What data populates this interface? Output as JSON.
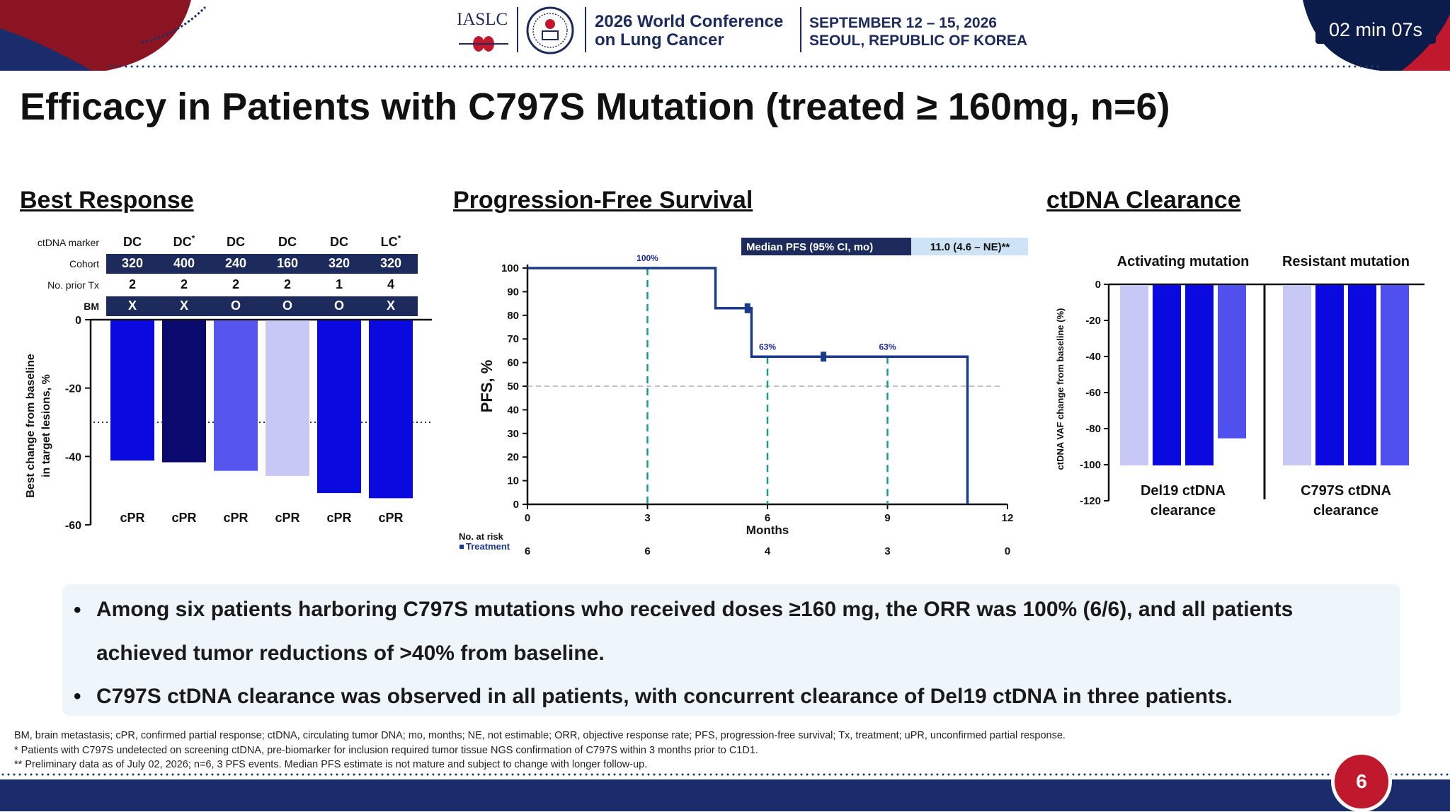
{
  "header": {
    "org": "IASLC",
    "conference_line1": "2026 World Conference",
    "conference_line2": "on Lung Cancer",
    "date_line1": "SEPTEMBER 12 – 15, 2026",
    "date_line2": "SEOUL, REPUBLIC OF KOREA",
    "timer": "02 min 07s",
    "colors": {
      "navy": "#1c2a5c",
      "red": "#c0192e"
    }
  },
  "title": "Efficacy in Patients with C797S Mutation (treated ≥ 160mg, n=6)",
  "sections": {
    "best_response": "Best Response",
    "pfs": "Progression-Free Survival",
    "ctdna": "ctDNA Clearance"
  },
  "chart_data": [
    {
      "type": "bar",
      "id": "best-response",
      "ylabel": "Best change from baseline in target lesions, %",
      "ylim": [
        -60,
        0
      ],
      "yticks": [
        0,
        -20,
        -40,
        -60
      ],
      "threshold": -30,
      "table_rows": [
        {
          "label": "ctDNA marker",
          "cells": [
            "DC",
            "DC",
            "DC",
            "DC",
            "DC",
            "LC"
          ],
          "sup": [
            "",
            "*",
            "",
            "",
            "",
            "*"
          ]
        },
        {
          "label": "Cohort",
          "cells": [
            "320",
            "400",
            "240",
            "160",
            "320",
            "320"
          ]
        },
        {
          "label": "No. prior Tx",
          "cells": [
            "2",
            "2",
            "2",
            "2",
            "1",
            "4"
          ]
        },
        {
          "label": "BM",
          "cells": [
            "X",
            "X",
            "O",
            "O",
            "O",
            "X"
          ]
        }
      ],
      "values": [
        -41,
        -41.5,
        -44,
        -45.5,
        -50.5,
        -52
      ],
      "colors": [
        "#0a0ae0",
        "#0a0a6e",
        "#5656ee",
        "#c8c8f6",
        "#0a0ae0",
        "#0a0ae0"
      ],
      "responses": [
        "cPR",
        "cPR",
        "cPR",
        "cPR",
        "cPR",
        "cPR"
      ]
    },
    {
      "type": "line",
      "id": "pfs",
      "xlabel": "Months",
      "ylabel": "PFS, %",
      "xlim": [
        0,
        12
      ],
      "ylim": [
        0,
        100
      ],
      "xticks": [
        0,
        3,
        6,
        9,
        12
      ],
      "yticks": [
        0,
        10,
        20,
        30,
        40,
        50,
        60,
        70,
        80,
        90,
        100
      ],
      "km_steps": [
        [
          0,
          100
        ],
        [
          4.7,
          100
        ],
        [
          4.7,
          83
        ],
        [
          5.6,
          83
        ],
        [
          5.6,
          62.5
        ],
        [
          11,
          62.5
        ],
        [
          11,
          0
        ]
      ],
      "censors": [
        [
          5.5,
          83
        ],
        [
          7.4,
          62.5
        ]
      ],
      "landmarks": [
        {
          "x": 3,
          "y": 100,
          "label": "100%"
        },
        {
          "x": 6,
          "y": 62.5,
          "label": "63%"
        },
        {
          "x": 9,
          "y": 62.5,
          "label": "63%"
        }
      ],
      "median_label": "Median PFS (95% CI, mo)",
      "median_value": "11.0 (4.6 – NE)**",
      "at_risk_title": "No. at risk",
      "at_risk_series": "Treatment",
      "at_risk": [
        6,
        6,
        4,
        3,
        0
      ]
    },
    {
      "type": "bar",
      "id": "ctdna",
      "ylabel": "ctDNA VAF change from baseline (%)",
      "ylim": [
        -120,
        0
      ],
      "yticks": [
        0,
        -20,
        -40,
        -60,
        -80,
        -100,
        -120
      ],
      "groups": [
        {
          "header": "Activating mutation",
          "label_line1": "Del19 ctDNA",
          "label_line2": "clearance",
          "values": [
            -100,
            -100,
            -100,
            -85
          ],
          "colors": [
            "#c8c8f6",
            "#0a0ae0",
            "#0a0ae0",
            "#5050ee"
          ]
        },
        {
          "header": "Resistant mutation",
          "label_line1": "C797S ctDNA",
          "label_line2": "clearance",
          "values": [
            -100,
            -100,
            -100,
            -100
          ],
          "colors": [
            "#c8c8f6",
            "#0a0ae0",
            "#0a0ae0",
            "#5050ee"
          ]
        }
      ]
    }
  ],
  "bullets": [
    {
      "line1": "Among six patients harboring C797S mutations who received doses ≥160 mg, the ORR was 100% (6/6), and all patients",
      "line2": "achieved tumor reductions of >40% from baseline."
    },
    {
      "line1": "C797S ctDNA clearance was observed in all patients, with concurrent clearance of Del19 ctDNA in three patients.",
      "line2": ""
    }
  ],
  "footnotes": [
    "BM, brain metastasis; cPR, confirmed partial response; ctDNA, circulating tumor DNA; mo, months; NE, not estimable; ORR, objective response rate; PFS, progression-free survival; Tx, treatment; uPR, unconfirmed partial response.",
    "* Patients with C797S undetected on screening ctDNA, pre-biomarker for inclusion required tumor tissue NGS confirmation of C797S within 3 months prior to C1D1.",
    "** Preliminary data as of July 02, 2026; n=6, 3 PFS events. Median PFS estimate is not mature and subject to change with longer follow-up."
  ],
  "page_number": "6"
}
